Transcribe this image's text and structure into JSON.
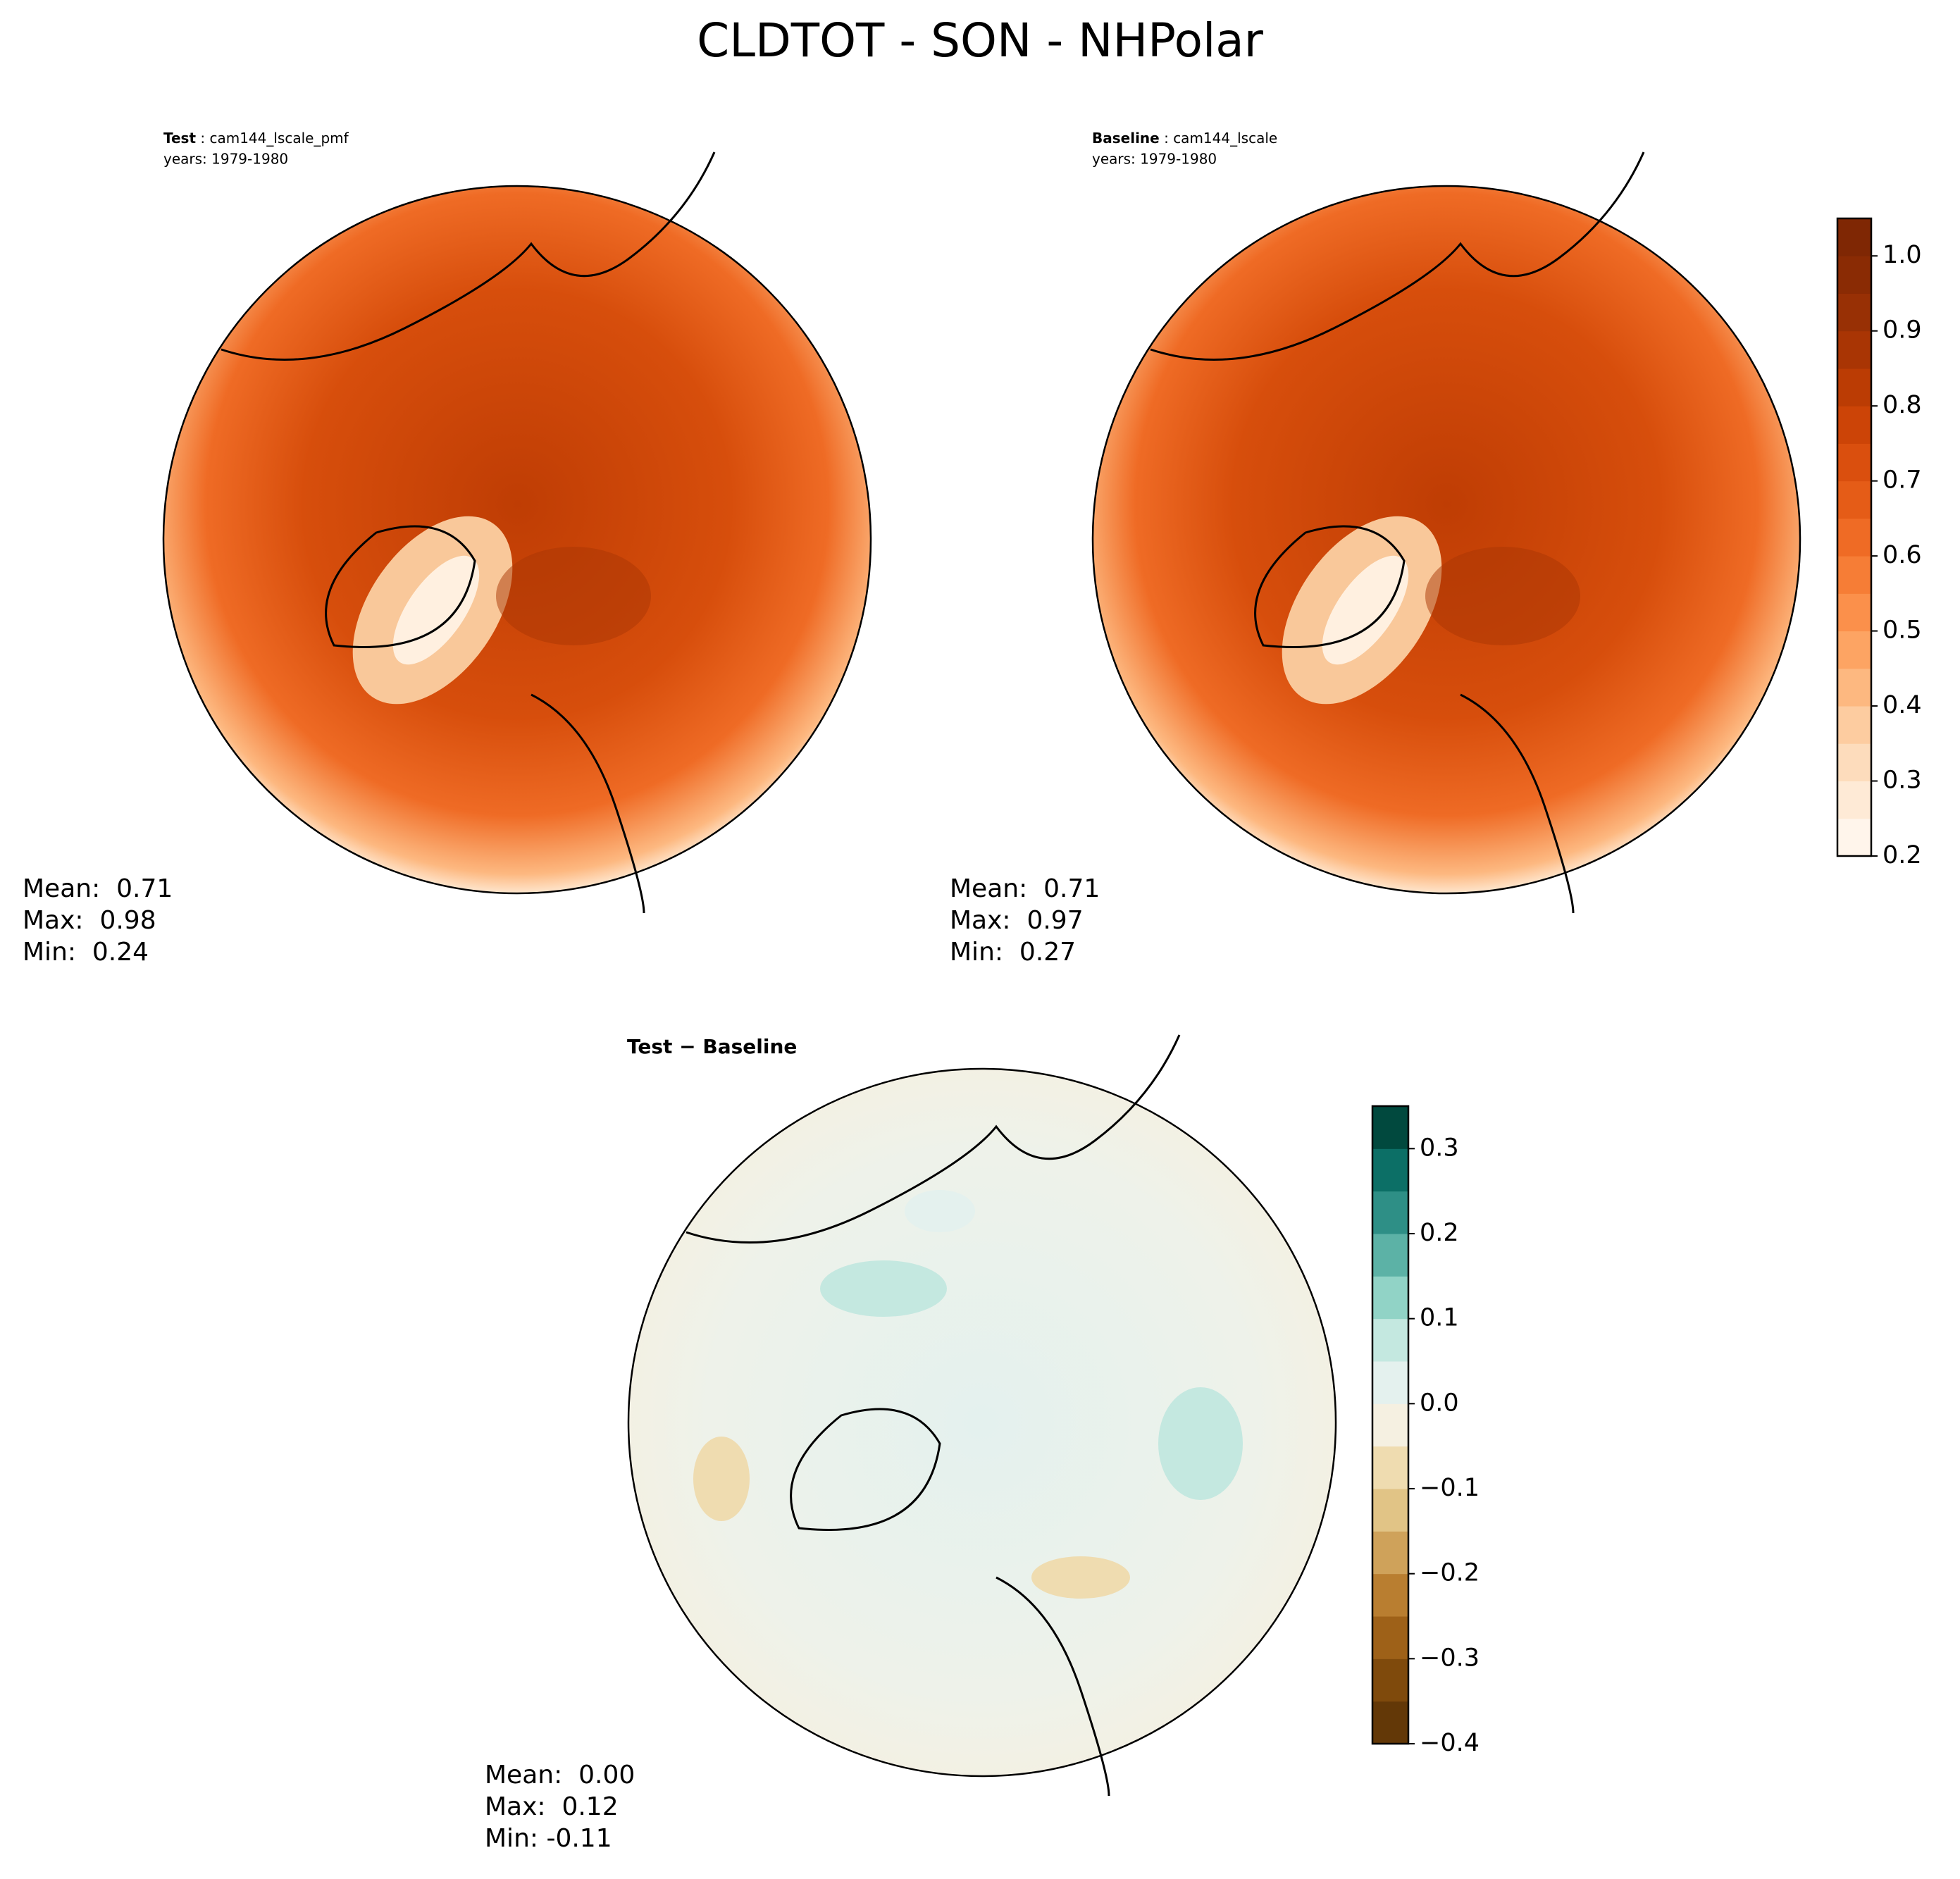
{
  "suptitle": "CLDTOT - SON - NHPolar",
  "chart_data": [
    {
      "type": "polar-contour",
      "title_bold": "Test",
      "title_rest": " : cam144_lscale_pmf",
      "subtitle": "years: 1979-1980",
      "stats": [
        "Mean:  0.71",
        "Max:  0.98",
        "Min:  0.24"
      ],
      "palette": "oranges"
    },
    {
      "type": "polar-contour",
      "title_bold": "Baseline",
      "title_rest": " : cam144_lscale",
      "subtitle": "years: 1979-1980",
      "stats": [
        "Mean:  0.71",
        "Max:  0.97",
        "Min:  0.27"
      ],
      "palette": "oranges",
      "colorbar": {
        "ylim": [
          0.2,
          1.05
        ],
        "yticks": [
          0.2,
          0.3,
          0.4,
          0.5,
          0.6,
          0.7,
          0.8,
          0.9,
          {
            "value": 1.0,
            "label": "1.0"
          }
        ],
        "colors": [
          "#fff5eb",
          "#feead6",
          "#fddcbc",
          "#fdcca0",
          "#fdb880",
          "#fda463",
          "#fb904b",
          "#f67d36",
          "#ef6b25",
          "#e55c17",
          "#da4f0e",
          "#cc4407",
          "#bb3c04",
          "#a93504",
          "#983005",
          "#8a2b04",
          "#7f2704"
        ]
      }
    },
    {
      "type": "polar-contour",
      "title_bold": "Test − Baseline",
      "stats": [
        "Mean:  0.00",
        "Max:  0.12",
        "Min: -0.11"
      ],
      "palette": "diff",
      "colorbar": {
        "ylim": [
          -0.4,
          0.35
        ],
        "yticks": [
          {
            "value": -0.4,
            "label": "−0.4"
          },
          {
            "value": -0.3,
            "label": "−0.3"
          },
          {
            "value": -0.2,
            "label": "−0.2"
          },
          {
            "value": -0.1,
            "label": "−0.1"
          },
          {
            "value": 0,
            "label": "0.0"
          },
          0.1,
          0.2,
          0.3
        ],
        "colors": [
          "#633807",
          "#7f4a0c",
          "#9e6118",
          "#b97e30",
          "#cfa25a",
          "#e1c486",
          "#efdcb0",
          "#f5f0e1",
          "#e4f1ee",
          "#c4e8e0",
          "#91d3c6",
          "#5cb2a6",
          "#2e8f86",
          "#0c6f66",
          "#01493e"
        ]
      }
    }
  ]
}
